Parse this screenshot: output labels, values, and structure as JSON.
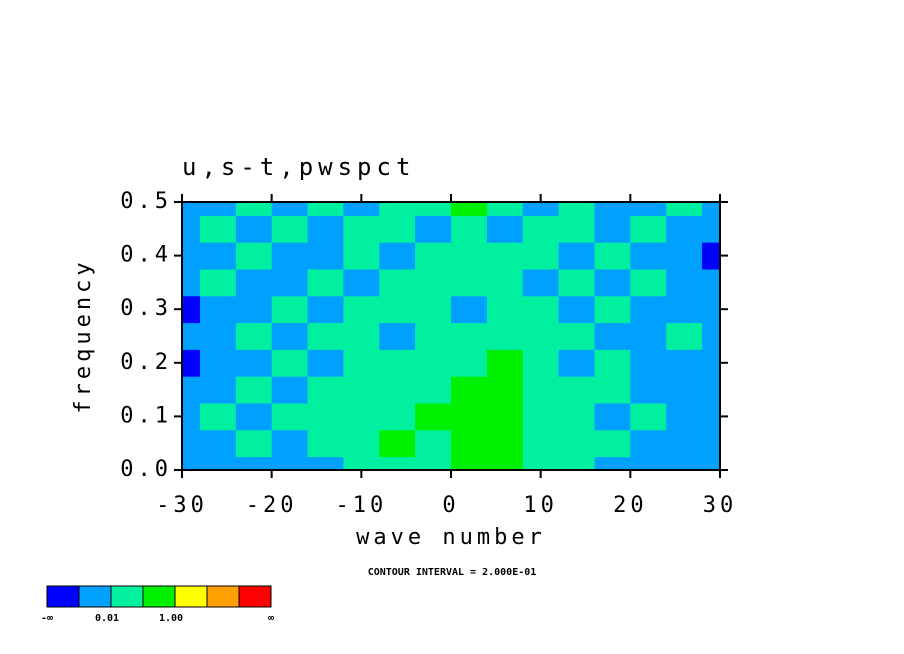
{
  "chart_data": {
    "type": "contour",
    "title": "u,s-t,pwspct",
    "x_label": "wave number",
    "y_label": "frequency",
    "annotation": "CONTOUR INTERVAL = 2.000E-01",
    "x": [
      -30,
      -26,
      -22,
      -18,
      -14,
      -10,
      -6,
      -2,
      2,
      6,
      10,
      14,
      18,
      22,
      26,
      30
    ],
    "y": [
      0,
      0.05,
      0.1,
      0.15,
      0.2,
      0.25,
      0.3,
      0.35,
      0.4,
      0.45,
      0.5
    ],
    "z": [
      [
        0.005,
        0.005,
        0.005,
        0.005,
        0.005,
        0.05,
        0.05,
        0.05,
        0.5,
        0.5,
        0.05,
        0.05,
        0.005,
        0.005,
        0.005,
        0.005
      ],
      [
        0.005,
        0.005,
        0.05,
        0.005,
        0.05,
        0.05,
        0.5,
        0.05,
        0.5,
        0.5,
        0.05,
        0.05,
        0.05,
        0.005,
        0.005,
        0.005
      ],
      [
        0.005,
        0.05,
        0.005,
        0.05,
        0.05,
        0.05,
        0.05,
        0.5,
        0.5,
        0.5,
        0.05,
        0.05,
        0.005,
        0.05,
        0.005,
        0.005
      ],
      [
        0.005,
        0.005,
        0.05,
        0.005,
        0.05,
        0.05,
        0.05,
        0.05,
        0.5,
        0.5,
        0.05,
        0.05,
        0.05,
        0.005,
        0.005,
        0.005
      ],
      [
        0.0005,
        0.005,
        0.005,
        0.05,
        0.005,
        0.05,
        0.05,
        0.05,
        0.05,
        0.5,
        0.05,
        0.005,
        0.05,
        0.005,
        0.005,
        0.005
      ],
      [
        0.005,
        0.005,
        0.05,
        0.005,
        0.05,
        0.05,
        0.005,
        0.05,
        0.05,
        0.05,
        0.05,
        0.05,
        0.005,
        0.005,
        0.05,
        0.005
      ],
      [
        0.0005,
        0.005,
        0.005,
        0.05,
        0.005,
        0.05,
        0.05,
        0.05,
        0.005,
        0.05,
        0.05,
        0.005,
        0.05,
        0.005,
        0.005,
        0.005
      ],
      [
        0.005,
        0.05,
        0.005,
        0.005,
        0.05,
        0.005,
        0.05,
        0.05,
        0.05,
        0.05,
        0.005,
        0.05,
        0.005,
        0.05,
        0.005,
        0.005
      ],
      [
        0.005,
        0.005,
        0.05,
        0.005,
        0.005,
        0.05,
        0.005,
        0.05,
        0.05,
        0.05,
        0.05,
        0.005,
        0.05,
        0.005,
        0.005,
        0.0005
      ],
      [
        0.005,
        0.05,
        0.005,
        0.05,
        0.005,
        0.05,
        0.05,
        0.005,
        0.05,
        0.005,
        0.05,
        0.05,
        0.005,
        0.05,
        0.005,
        0.005
      ],
      [
        0.005,
        0.005,
        0.05,
        0.005,
        0.05,
        0.005,
        0.05,
        0.05,
        0.5,
        0.05,
        0.005,
        0.05,
        0.005,
        0.005,
        0.05,
        0.005
      ]
    ],
    "levels": [
      0.001,
      0.01,
      0.2,
      1,
      2,
      4
    ],
    "colors": [
      "#0000ff",
      "#00a0ff",
      "#00f0a0",
      "#00f000",
      "#ffff00",
      "#ffa000",
      "#ff0000"
    ],
    "xlim": [
      -30,
      30
    ],
    "xticks": [
      -30,
      -20,
      -10,
      0,
      10,
      20,
      30
    ],
    "ylim": [
      0,
      0.5
    ],
    "yticks": [
      {
        "value": 0,
        "label": "0.0"
      },
      0.1,
      0.2,
      0.3,
      0.4,
      0.5
    ],
    "colorbar": {
      "min_label": "-∞",
      "max_label": "∞",
      "ticks": [
        {
          "value": 0.01,
          "label": "0.01"
        },
        {
          "value": 1,
          "label": "1.00"
        }
      ]
    }
  }
}
